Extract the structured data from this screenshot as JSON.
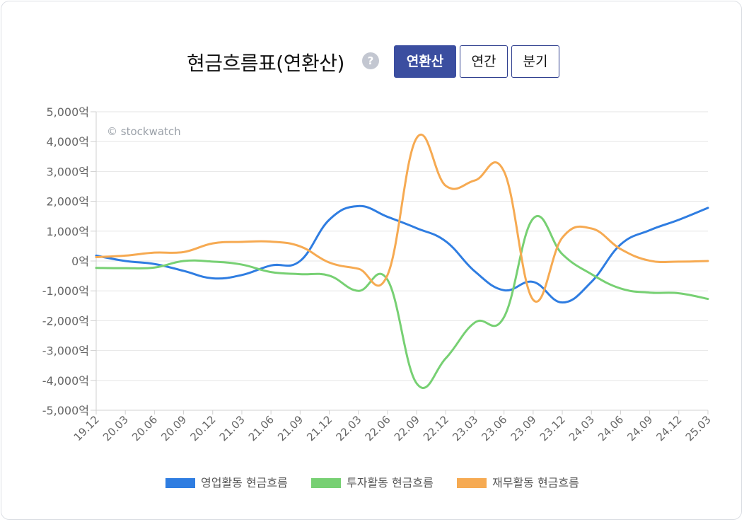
{
  "header": {
    "title": "현금흐름표(연환산)",
    "help_label": "?",
    "buttons": [
      {
        "label": "연환산",
        "active": true
      },
      {
        "label": "연간",
        "active": false
      },
      {
        "label": "분기",
        "active": false
      }
    ]
  },
  "watermark": "© stockwatch",
  "chart_data": {
    "type": "line",
    "categories": [
      "19.12",
      "20.03",
      "20.06",
      "20.09",
      "20.12",
      "21.03",
      "21.06",
      "21.09",
      "21.12",
      "22.03",
      "22.06",
      "22.09",
      "22.12",
      "23.03",
      "23.06",
      "23.09",
      "23.12",
      "24.03",
      "24.06",
      "24.09",
      "24.12",
      "25.03"
    ],
    "y_ticks": [
      "5,000억",
      "4,000억",
      "3,000억",
      "2,000억",
      "1,000억",
      "0억",
      "-1,000억",
      "-2,000억",
      "-3,000억",
      "-4,000억",
      "-5,000억"
    ],
    "ylim": [
      -5000,
      5000
    ],
    "unit": "억",
    "grid": true,
    "legend_position": "bottom",
    "series": [
      {
        "name": "영업활동 현금흐름",
        "color": "#2f7de1",
        "values": [
          180,
          0,
          -100,
          -330,
          -580,
          -470,
          -150,
          0,
          1380,
          1840,
          1480,
          1100,
          660,
          -350,
          -980,
          -700,
          -1390,
          -700,
          550,
          1030,
          1380,
          1780
        ]
      },
      {
        "name": "투자활동 현금흐름",
        "color": "#77d073",
        "values": [
          -230,
          -240,
          -220,
          0,
          -20,
          -120,
          -370,
          -440,
          -490,
          -1000,
          -630,
          -4100,
          -3260,
          -2060,
          -1880,
          1420,
          230,
          -440,
          -920,
          -1060,
          -1080,
          -1270
        ]
      },
      {
        "name": "재무활동 현금흐름",
        "color": "#f6aa52",
        "values": [
          130,
          180,
          280,
          300,
          590,
          640,
          650,
          490,
          -50,
          -260,
          -470,
          4120,
          2520,
          2700,
          3000,
          -1300,
          780,
          1090,
          400,
          10,
          -20,
          0
        ]
      }
    ]
  }
}
